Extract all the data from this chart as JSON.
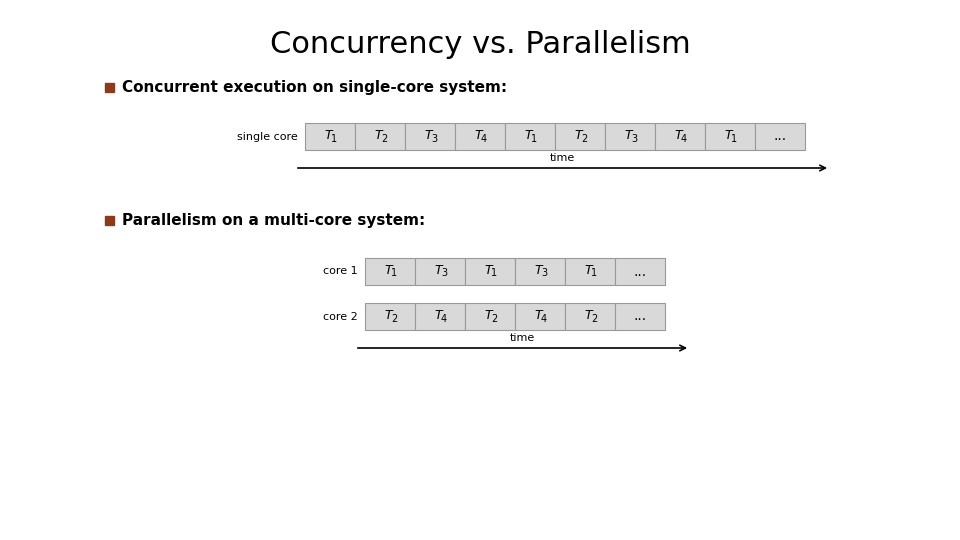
{
  "title": "Concurrency vs. Parallelism",
  "title_fontsize": 22,
  "bullet_color": "#8B3A1A",
  "bullet1_text": "Concurrent execution on single-core system:",
  "bullet2_text": "Parallelism on a multi-core system:",
  "bullet_fontsize": 11,
  "bg_color": "#ffffff",
  "box_fill": "#d9d9d9",
  "box_edge": "#999999",
  "single_core_label": "single core",
  "single_core_cells": [
    "T1",
    "T2",
    "T3",
    "T4",
    "T1",
    "T2",
    "T3",
    "T4",
    "T1",
    "..."
  ],
  "core1_label": "core 1",
  "core1_cells": [
    "T1",
    "T3",
    "T1",
    "T3",
    "T1",
    "..."
  ],
  "core2_label": "core 2",
  "core2_cells": [
    "T2",
    "T4",
    "T2",
    "T4",
    "T2",
    "..."
  ],
  "time_label": "time",
  "cell_fontsize": 9,
  "label_fontsize": 8,
  "time_fontsize": 8,
  "subscripts": {
    "T1": "1",
    "T2": "2",
    "T3": "3",
    "T4": "4"
  }
}
